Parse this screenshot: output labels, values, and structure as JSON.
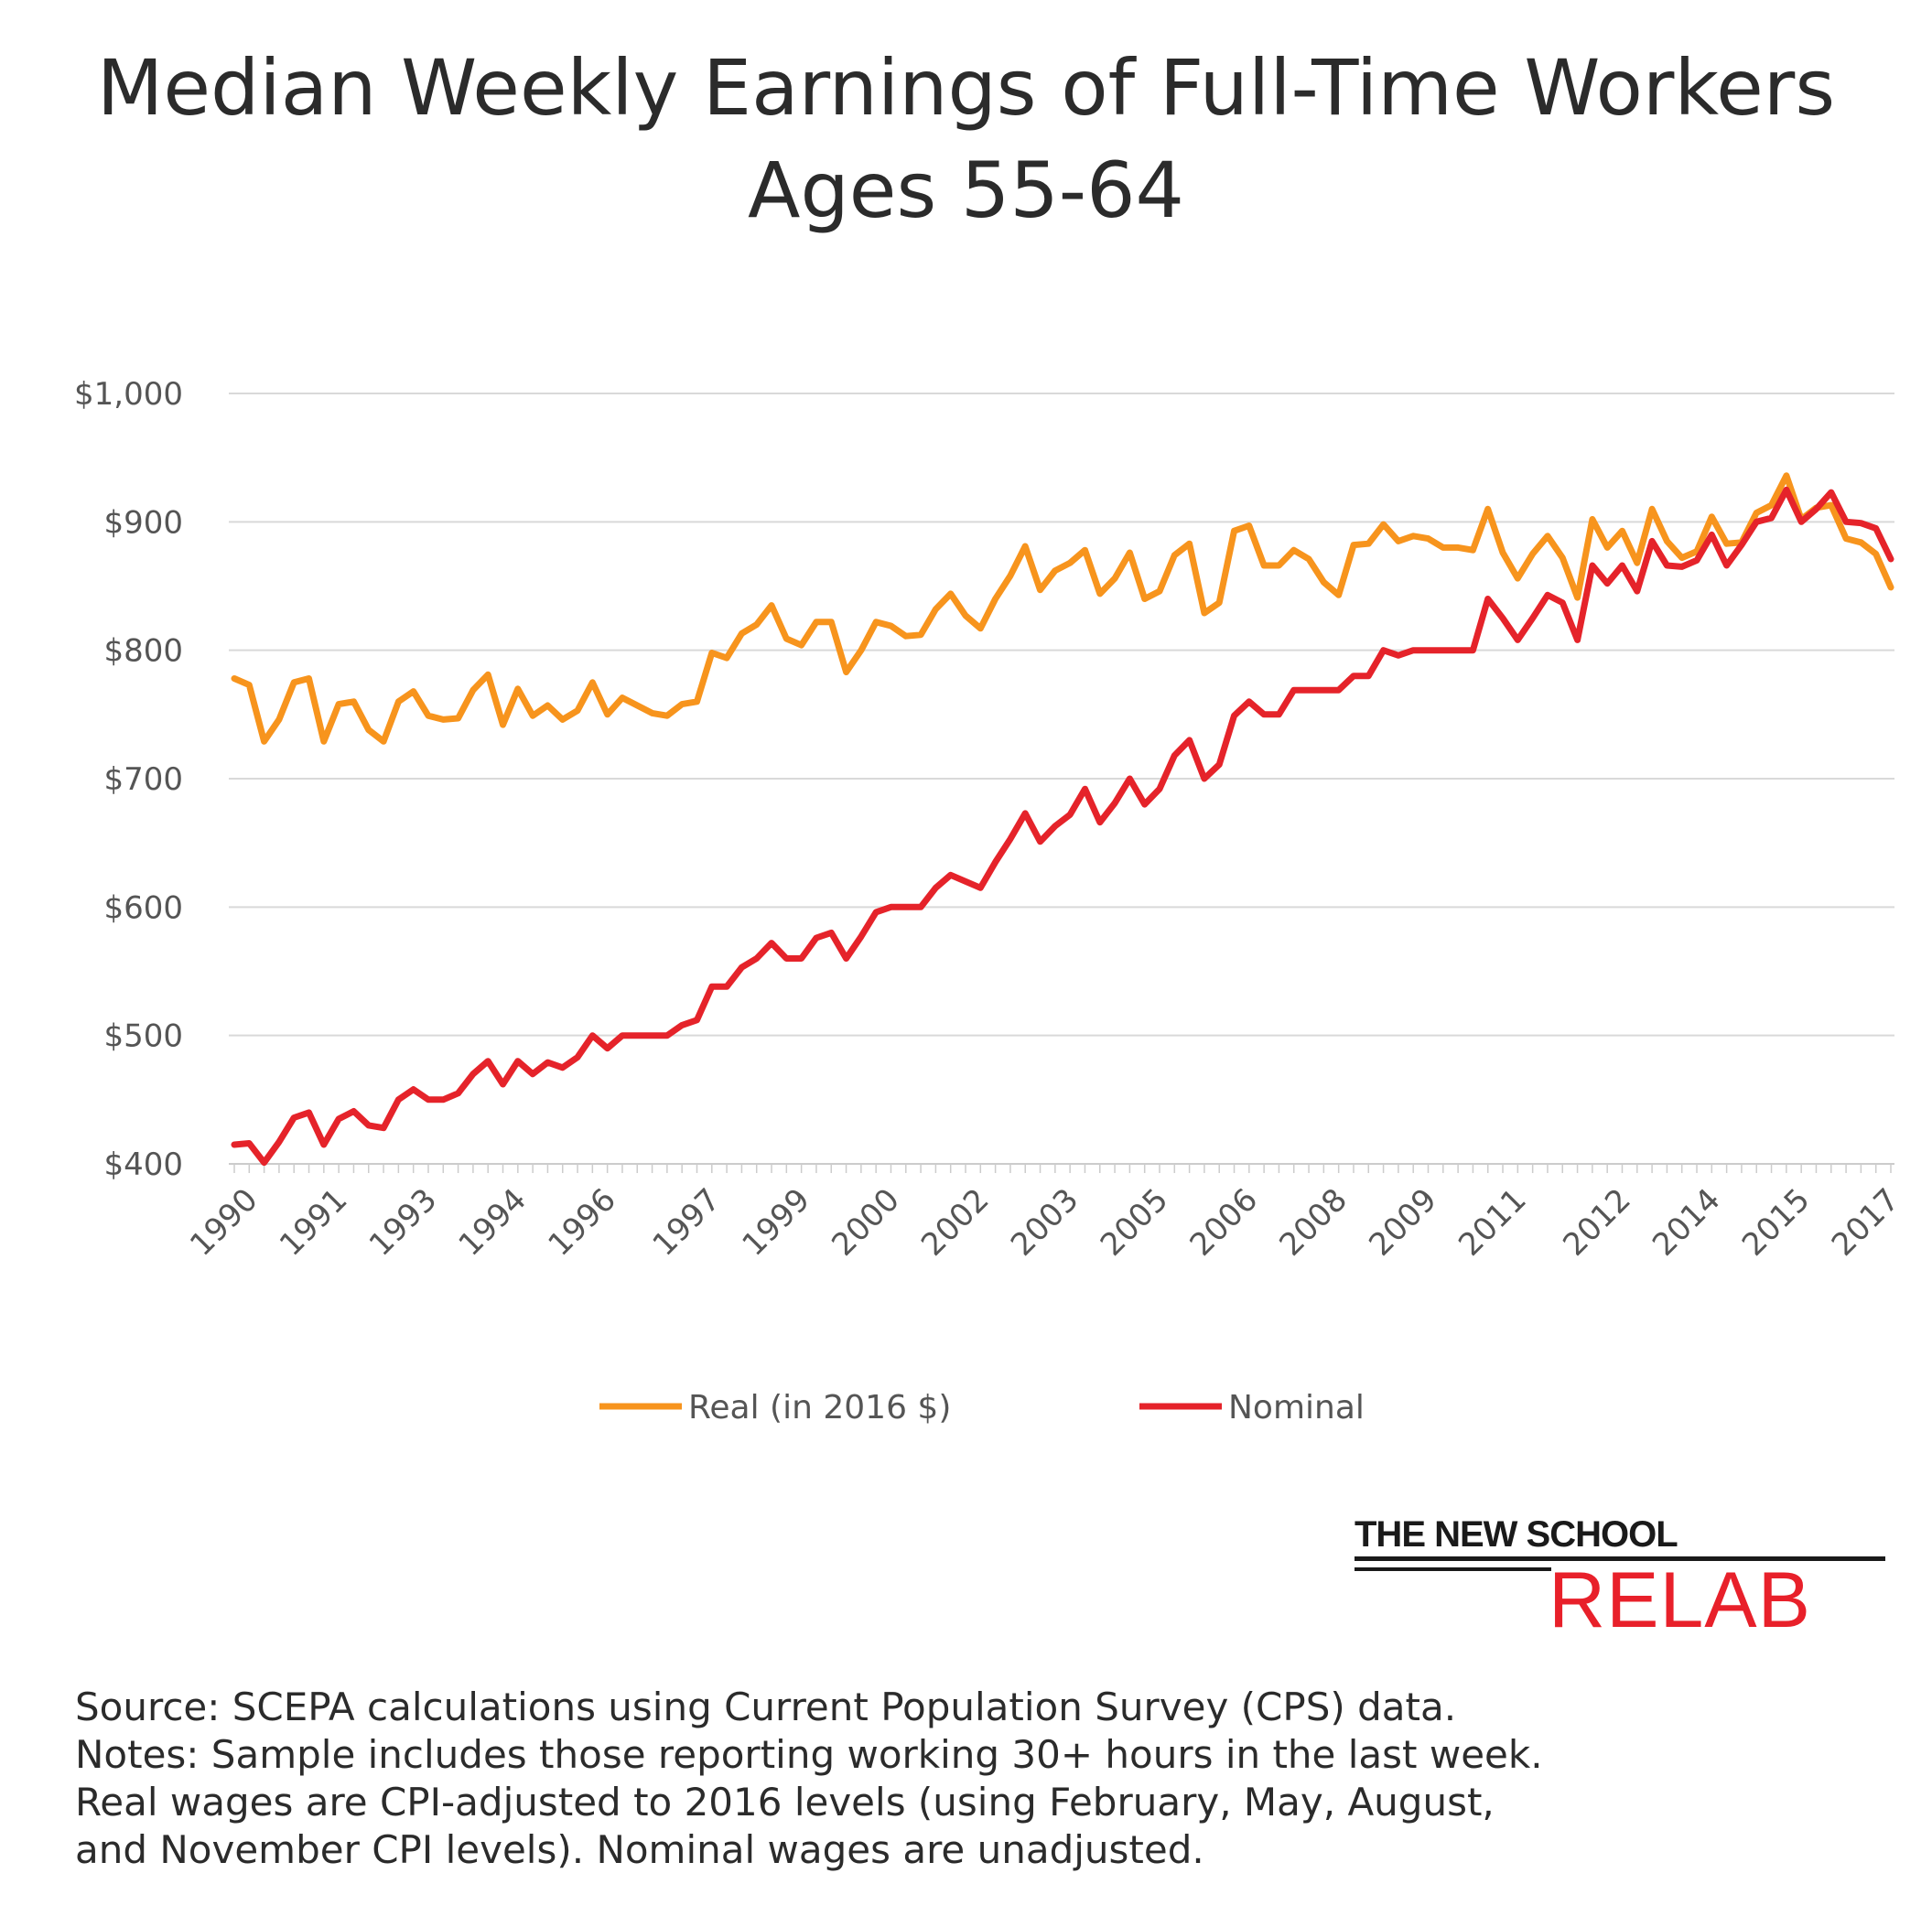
{
  "chart_data": {
    "type": "line",
    "title": "Median Weekly Earnings of Full-Time Workers Ages 55-64",
    "title_lines": [
      "Median Weekly Earnings of Full-Time Workers",
      "Ages 55-64"
    ],
    "xlabel": "",
    "ylabel": "",
    "ylim": [
      400,
      1000
    ],
    "yticks": [
      400,
      500,
      600,
      700,
      800,
      900,
      1000
    ],
    "ytick_labels": [
      "$400",
      "$500",
      "$600",
      "$700",
      "$800",
      "$900",
      "$1,000"
    ],
    "xtick_labels": [
      "1990",
      "1991",
      "1993",
      "1994",
      "1996",
      "1997",
      "1999",
      "2000",
      "2002",
      "2003",
      "2005",
      "2006",
      "2008",
      "2009",
      "2011",
      "2012",
      "2014",
      "2015",
      "2017"
    ],
    "grid": true,
    "legend_position": "bottom",
    "colors": {
      "real": "#f7941d",
      "nominal": "#e5232a",
      "grid": "#d9d9d9"
    },
    "series": [
      {
        "name": "Real (in 2016 $)",
        "color": "#f7941d",
        "values": [
          778,
          773,
          729,
          746,
          775,
          778,
          729,
          758,
          760,
          738,
          729,
          760,
          768,
          749,
          746,
          747,
          769,
          781,
          742,
          770,
          749,
          757,
          746,
          753,
          775,
          750,
          763,
          757,
          751,
          749,
          758,
          760,
          798,
          794,
          813,
          820,
          835,
          809,
          804,
          822,
          822,
          783,
          800,
          822,
          819,
          811,
          812,
          832,
          844,
          827,
          817,
          840,
          858,
          881,
          847,
          862,
          868,
          878,
          844,
          856,
          876,
          840,
          846,
          874,
          883,
          829,
          837,
          893,
          897,
          866,
          866,
          878,
          871,
          853,
          843,
          882,
          883,
          898,
          885,
          889,
          887,
          880,
          880,
          878,
          910,
          876,
          856,
          875,
          889,
          872,
          841,
          902,
          880,
          893,
          868,
          910,
          885,
          872,
          877,
          904,
          883,
          884,
          907,
          913,
          936,
          902,
          911,
          913,
          887,
          884,
          875,
          849
        ]
      },
      {
        "name": "Nominal",
        "color": "#e5232a",
        "values": [
          415,
          416,
          401,
          417,
          436,
          440,
          415,
          435,
          441,
          430,
          428,
          450,
          458,
          450,
          450,
          455,
          470,
          480,
          462,
          480,
          470,
          479,
          475,
          483,
          500,
          490,
          500,
          500,
          500,
          500,
          508,
          512,
          538,
          538,
          553,
          560,
          572,
          560,
          560,
          576,
          580,
          560,
          577,
          596,
          600,
          600,
          600,
          615,
          625,
          620,
          615,
          635,
          653,
          673,
          651,
          663,
          672,
          692,
          666,
          681,
          700,
          680,
          692,
          718,
          730,
          700,
          711,
          749,
          760,
          750,
          750,
          769,
          769,
          769,
          769,
          780,
          780,
          800,
          796,
          800,
          800,
          800,
          800,
          800,
          840,
          825,
          808,
          825,
          843,
          837,
          808,
          866,
          852,
          866,
          846,
          885,
          866,
          865,
          870,
          890,
          866,
          882,
          900,
          903,
          925,
          900,
          910,
          923,
          900,
          899,
          895,
          871
        ]
      }
    ]
  },
  "logo": {
    "top_text": "THE NEW SCHOOL",
    "bottom_text": "RELAB"
  },
  "notes": {
    "line1": "Source: SCEPA calculations using Current Population Survey (CPS) data.",
    "line2": "Notes: Sample includes those reporting working 30+ hours in the last week.",
    "line3": "Real wages are CPI-adjusted to 2016 levels (using February, May, August,",
    "line4": "and November CPI levels). Nominal wages are unadjusted."
  }
}
